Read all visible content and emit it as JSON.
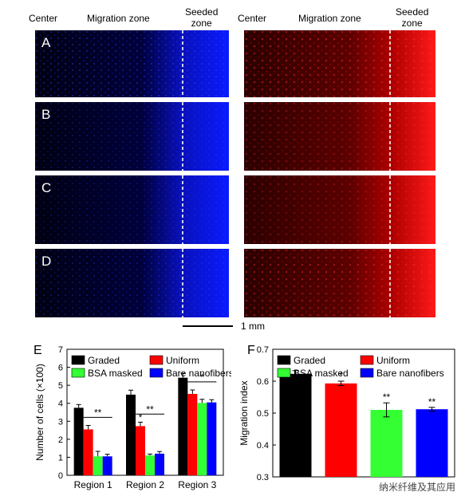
{
  "headers": {
    "left": {
      "center": "Center",
      "migration": "Migration zone",
      "seeded": "Seeded\nzone"
    },
    "right": {
      "center": "Center",
      "migration": "Migration zone",
      "seeded": "Seeded\nzone"
    }
  },
  "row_labels": [
    "A",
    "B",
    "C",
    "D"
  ],
  "scale_bar": {
    "label": "1 mm"
  },
  "colors": {
    "dapi": "#0a1bff",
    "red": "#ff1a1a",
    "graded": "#000000",
    "uniform": "#ff0000",
    "bsa": "#33ff33",
    "bare": "#0000ff"
  },
  "chart_data": [
    {
      "panel": "E",
      "type": "bar",
      "ylabel": "Number of cells (×100)",
      "categories": [
        "Region 1",
        "Region 2",
        "Region 3"
      ],
      "ylim": [
        0,
        7
      ],
      "yticks": [
        0,
        1,
        2,
        3,
        4,
        5,
        6,
        7
      ],
      "series": [
        {
          "name": "Graded",
          "values": [
            3.75,
            4.48,
            5.42
          ],
          "err": [
            0.18,
            0.25,
            0.25
          ]
        },
        {
          "name": "Uniform",
          "values": [
            2.55,
            2.73,
            4.52
          ],
          "err": [
            0.22,
            0.22,
            0.22
          ]
        },
        {
          "name": "BSA masked",
          "values": [
            1.05,
            1.1,
            4.02
          ],
          "err": [
            0.28,
            0.08,
            0.2
          ]
        },
        {
          "name": "Bare nanofibers",
          "values": [
            1.05,
            1.2,
            4.05
          ],
          "err": [
            0.12,
            0.12,
            0.15
          ]
        }
      ],
      "significance": [
        {
          "label": "**",
          "category": 0
        },
        {
          "label": "*",
          "category": 1,
          "series": 1
        },
        {
          "label": "**",
          "category": 1
        },
        {
          "label": "*",
          "category": 2
        }
      ],
      "legend": "top"
    },
    {
      "panel": "F",
      "type": "bar",
      "ylabel": "Migration index",
      "categories": [
        "Graded",
        "Uniform",
        "BSA masked",
        "Bare nanofibers"
      ],
      "ylim": [
        0.3,
        0.7
      ],
      "yticks": [
        0.3,
        0.4,
        0.5,
        0.6,
        0.7
      ],
      "values": [
        0.623,
        0.593,
        0.51,
        0.512
      ],
      "err": [
        0.01,
        0.007,
        0.022,
        0.006
      ],
      "significance": [
        "",
        "*",
        "**",
        "**"
      ],
      "legend": "top"
    }
  ],
  "watermark": "纳米纤维及其应用"
}
